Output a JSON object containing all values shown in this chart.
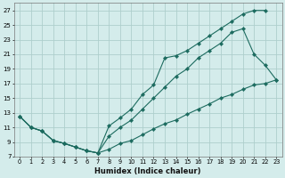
{
  "xlabel": "Humidex (Indice chaleur)",
  "background_color": "#d4eceb",
  "grid_color": "#aecfcc",
  "line_color": "#1c6b5f",
  "xlim": [
    -0.5,
    23.5
  ],
  "ylim": [
    7,
    28
  ],
  "xticks": [
    0,
    1,
    2,
    3,
    4,
    5,
    6,
    7,
    8,
    9,
    10,
    11,
    12,
    13,
    14,
    15,
    16,
    17,
    18,
    19,
    20,
    21,
    22,
    23
  ],
  "yticks": [
    7,
    9,
    11,
    13,
    15,
    17,
    19,
    21,
    23,
    25,
    27
  ],
  "line1_x": [
    0,
    1,
    2,
    3,
    4,
    5,
    6,
    7,
    8,
    9,
    10,
    11,
    12,
    13,
    14,
    15,
    16,
    17,
    18,
    19,
    20,
    21,
    22
  ],
  "line1_y": [
    12.5,
    11,
    10.5,
    9.2,
    8.8,
    8.3,
    7.8,
    7.5,
    11.2,
    12.3,
    13.5,
    15.5,
    16.8,
    20.5,
    20.8,
    21.5,
    22.5,
    23.5,
    24.5,
    25.5,
    26.5,
    27.0,
    27.0
  ],
  "line2_x": [
    0,
    1,
    2,
    3,
    4,
    5,
    6,
    7,
    8,
    9,
    10,
    11,
    12,
    13,
    14,
    15,
    16,
    17,
    18,
    19,
    20,
    21,
    22,
    23
  ],
  "line2_y": [
    12.5,
    11,
    10.5,
    9.2,
    8.8,
    8.3,
    7.8,
    7.5,
    9.8,
    11.0,
    12.0,
    13.5,
    15.0,
    16.5,
    18.0,
    19.0,
    20.5,
    21.5,
    22.5,
    24.0,
    24.5,
    21.0,
    19.5,
    17.5
  ],
  "line3_x": [
    0,
    1,
    2,
    3,
    4,
    5,
    6,
    7,
    8,
    9,
    10,
    11,
    12,
    13,
    14,
    15,
    16,
    17,
    18,
    19,
    20,
    21,
    22,
    23
  ],
  "line3_y": [
    12.5,
    11,
    10.5,
    9.2,
    8.8,
    8.3,
    7.8,
    7.5,
    8.0,
    8.8,
    9.2,
    10.0,
    10.8,
    11.5,
    12.0,
    12.8,
    13.5,
    14.2,
    15.0,
    15.5,
    16.2,
    16.8,
    17.0,
    17.5
  ]
}
